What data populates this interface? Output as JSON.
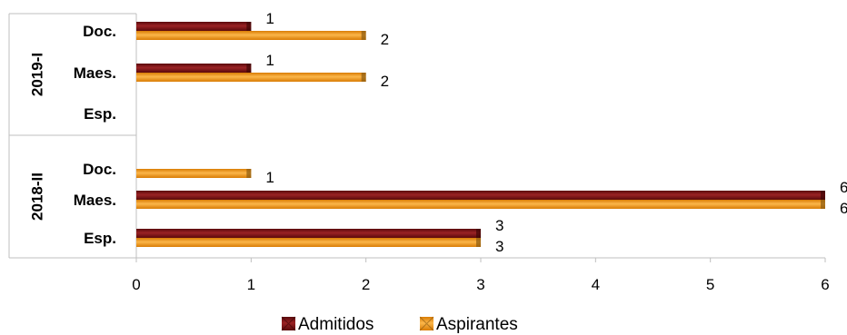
{
  "chart_data": {
    "type": "bar",
    "orientation": "horizontal",
    "groups": [
      {
        "label": "2019-I",
        "categories": [
          "Doc.",
          "Maes.",
          "Esp."
        ]
      },
      {
        "label": "2018-II",
        "categories": [
          "Doc.",
          "Maes.",
          "Esp."
        ]
      }
    ],
    "series": [
      {
        "name": "Admitidos",
        "color": "#7b1416",
        "values": [
          1,
          1,
          null,
          null,
          6,
          3
        ]
      },
      {
        "name": "Aspirantes",
        "color": "#f29a1c",
        "values": [
          2,
          2,
          null,
          1,
          6,
          3
        ]
      }
    ],
    "xlim": [
      0,
      6
    ],
    "xticks": [
      "0",
      "1",
      "2",
      "3",
      "4",
      "5",
      "6"
    ],
    "legend": "bottom",
    "grid": false,
    "data_labels": true
  }
}
